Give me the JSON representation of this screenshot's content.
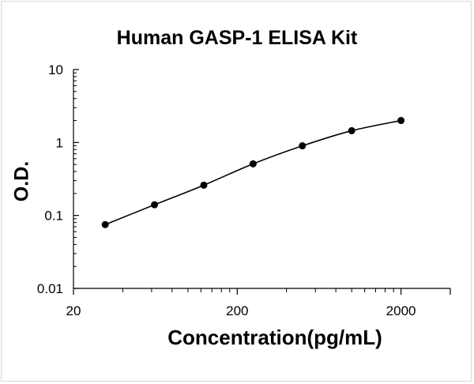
{
  "chart_data": {
    "type": "scatter",
    "title": "Human GASP-1 ELISA Kit",
    "xlabel": "Concentration(pg/mL)",
    "ylabel": "O.D.",
    "x_scale": "log",
    "y_scale": "log",
    "xlim": [
      20,
      4000
    ],
    "ylim": [
      0.01,
      10
    ],
    "x_tick_labels": [
      {
        "value": 20,
        "label": "20"
      },
      {
        "value": 200,
        "label": "200"
      },
      {
        "value": 2000,
        "label": "2000"
      }
    ],
    "y_tick_labels": [
      {
        "value": 0.01,
        "label": "0.01"
      },
      {
        "value": 0.1,
        "label": "0.1"
      },
      {
        "value": 1,
        "label": "1"
      },
      {
        "value": 10,
        "label": "10"
      }
    ],
    "grid": false,
    "legend": "none",
    "trendline": true,
    "series": [
      {
        "x": [
          31.25,
          62.5,
          125,
          250,
          500,
          1000,
          2000
        ],
        "y": [
          0.075,
          0.14,
          0.26,
          0.51,
          0.9,
          1.45,
          2.0
        ],
        "color": "#000000"
      }
    ]
  }
}
